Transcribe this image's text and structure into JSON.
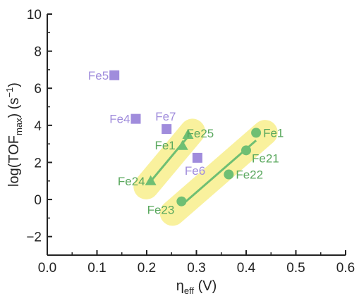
{
  "chart_data": {
    "type": "scatter",
    "title": "",
    "xlabel": "η",
    "xlabel_sub": "eff",
    "xlabel_unit": " (V)",
    "ylabel": "log(TOF",
    "ylabel_sub": "max",
    "ylabel_unit": ") (s",
    "ylabel_sup": "−1",
    "ylabel_close": ")",
    "xlim": [
      0.0,
      0.6
    ],
    "ylim": [
      -3,
      10
    ],
    "xticks": [
      "0.0",
      "0.1",
      "0.2",
      "0.3",
      "0.4",
      "0.5",
      "0.6"
    ],
    "yticks": [
      "−2",
      "0",
      "2",
      "4",
      "6",
      "8",
      "10"
    ],
    "grid": false,
    "colors": {
      "square": "#a08cdc",
      "green": "#6fbf73",
      "green_label": "#5aa85e",
      "highlight": "#f8ef8c",
      "axis": "#222222"
    },
    "series": [
      {
        "marker": "square",
        "points": [
          {
            "label": "Fe5",
            "x": 0.135,
            "y": 6.7
          },
          {
            "label": "Fe4",
            "x": 0.178,
            "y": 4.35
          },
          {
            "label": "Fe7",
            "x": 0.24,
            "y": 3.8
          },
          {
            "label": "Fe6",
            "x": 0.302,
            "y": 2.25
          }
        ]
      },
      {
        "marker": "triangle",
        "fit_line": true,
        "points": [
          {
            "label": "Fe24",
            "x": 0.208,
            "y": 1.0
          },
          {
            "label": "Fe1",
            "x": 0.272,
            "y": 2.9
          },
          {
            "label": "Fe25",
            "x": 0.283,
            "y": 3.5
          }
        ]
      },
      {
        "marker": "circle",
        "fit_line": true,
        "points": [
          {
            "label": "Fe23",
            "x": 0.27,
            "y": -0.1
          },
          {
            "label": "Fe22",
            "x": 0.365,
            "y": 1.35
          },
          {
            "label": "Fe21",
            "x": 0.4,
            "y": 2.65
          },
          {
            "label": "Fe1",
            "x": 0.42,
            "y": 3.6
          }
        ]
      }
    ]
  }
}
